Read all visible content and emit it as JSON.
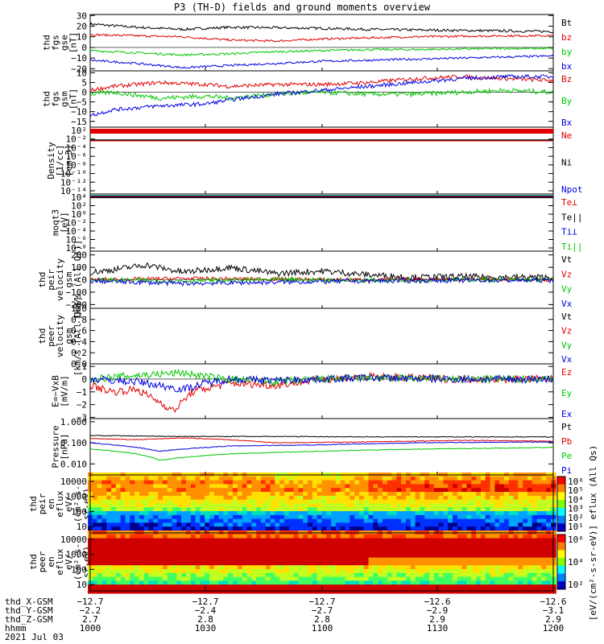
{
  "title": "P3 (TH-D) fields and ground moments overview",
  "chart_data": [
    {
      "type": "line",
      "id": "fgs",
      "ylabel": [
        "thd",
        "fgs",
        "gse",
        "[nT]"
      ],
      "ylim": [
        -22,
        31
      ],
      "ticks": [
        {
          "v": 30,
          "t": "30"
        },
        {
          "v": 20,
          "t": "20"
        },
        {
          "v": 10,
          "t": "10"
        },
        {
          "v": 0,
          "t": "0"
        },
        {
          "v": -10,
          "t": "−10"
        },
        {
          "v": -20,
          "t": "−20"
        }
      ],
      "series": [
        {
          "name": "Bt",
          "color": "#000000",
          "kx": [
            0,
            0.1,
            0.2,
            0.3,
            0.4,
            0.5,
            0.6,
            0.7,
            0.8,
            0.9,
            1
          ],
          "ky": [
            22,
            19,
            17,
            19,
            18.5,
            18,
            17,
            16.5,
            16,
            15.5,
            15
          ],
          "noise": 1.2
        },
        {
          "name": "bz",
          "color": "#e00000",
          "kx": [
            0,
            0.1,
            0.2,
            0.3,
            0.4,
            0.5,
            0.6,
            0.7,
            0.8,
            0.9,
            1
          ],
          "ky": [
            12,
            11,
            10,
            7,
            6,
            8,
            9,
            10,
            10.5,
            11,
            11
          ],
          "noise": 1
        },
        {
          "name": "by",
          "color": "#00c800",
          "kx": [
            0,
            0.1,
            0.2,
            0.3,
            0.4,
            0.5,
            0.6,
            0.7,
            0.8,
            0.9,
            1
          ],
          "ky": [
            -3,
            -5,
            -7,
            -6,
            -4,
            -3,
            -2,
            -2,
            -1.5,
            -1,
            -1
          ],
          "noise": 1
        },
        {
          "name": "bx",
          "color": "#0000e0",
          "kx": [
            0,
            0.1,
            0.2,
            0.3,
            0.4,
            0.5,
            0.6,
            0.7,
            0.8,
            0.9,
            1
          ],
          "ky": [
            -12,
            -15,
            -19,
            -17,
            -15,
            -13,
            -12,
            -11,
            -10,
            -9,
            -8
          ],
          "noise": 1
        }
      ]
    },
    {
      "type": "line",
      "id": "fgsgsm",
      "ylabel": [
        "thd",
        "fgs",
        "gsm",
        "[nT]"
      ],
      "ylim": [
        -18,
        11
      ],
      "ticks": [
        {
          "v": 10,
          "t": "10"
        },
        {
          "v": 5,
          "t": "5"
        },
        {
          "v": 0,
          "t": "0"
        },
        {
          "v": -5,
          "t": "−5"
        },
        {
          "v": -10,
          "t": "−10"
        },
        {
          "v": -15,
          "t": "−15"
        }
      ],
      "series": [
        {
          "name": "Bz",
          "color": "#e00000",
          "kx": [
            0,
            0.05,
            0.15,
            0.25,
            0.3,
            0.4,
            0.5,
            0.6,
            0.7,
            0.8,
            0.9,
            1
          ],
          "ky": [
            1,
            3,
            5,
            4,
            3,
            4,
            4,
            5,
            7,
            8,
            7,
            6
          ],
          "noise": 1
        },
        {
          "name": "By",
          "color": "#00c800",
          "kx": [
            0,
            0.05,
            0.15,
            0.25,
            0.3,
            0.4,
            0.5,
            0.6,
            0.7,
            0.8,
            0.9,
            1
          ],
          "ky": [
            -1,
            0,
            -3,
            -2,
            -3,
            -1,
            0,
            -1,
            -1,
            0,
            1,
            0
          ],
          "noise": 1.2
        },
        {
          "name": "Bx",
          "color": "#0000e0",
          "kx": [
            0,
            0.05,
            0.15,
            0.25,
            0.3,
            0.4,
            0.5,
            0.6,
            0.7,
            0.8,
            0.9,
            1
          ],
          "ky": [
            -12,
            -9,
            -7,
            -6,
            -4,
            -1,
            1,
            3,
            5,
            7,
            8,
            8
          ],
          "noise": 1
        }
      ]
    },
    {
      "type": "line",
      "id": "density",
      "ylabel": [
        "Density",
        "[1/cc]",
        "[cm−3]"
      ],
      "ticks": [
        {
          "t": "10²"
        },
        {
          "t": "10⁻²"
        },
        {
          "t": "10⁻⁴"
        },
        {
          "t": "10⁻⁶"
        },
        {
          "t": "10⁻⁸"
        },
        {
          "t": "10⁻¹⁰"
        },
        {
          "t": "10⁻¹²"
        },
        {
          "t": "10⁻¹⁴"
        }
      ],
      "series": [
        {
          "name": "Ne",
          "color": "#e00000"
        },
        {
          "name": "Ni",
          "color": "#000000"
        },
        {
          "name": "Npot",
          "color": "#0000e0"
        }
      ]
    },
    {
      "type": "line",
      "id": "temp",
      "ylabel": [
        "moqt3",
        "[eV]"
      ],
      "ticks": [
        {
          "t": "10⁴"
        },
        {
          "t": "10²"
        },
        {
          "t": "10⁰"
        },
        {
          "t": "10⁻²"
        },
        {
          "t": "10⁻⁴"
        },
        {
          "t": "10⁻⁶"
        },
        {
          "t": "10⁻⁸"
        }
      ],
      "series": [
        {
          "name": "Te⊥",
          "color": "#e00000"
        },
        {
          "name": "Te||",
          "color": "#000000"
        },
        {
          "name": "Ti⊥",
          "color": "#0000e0"
        },
        {
          "name": "Ti||",
          "color": "#00c800"
        }
      ]
    },
    {
      "type": "line",
      "id": "peir",
      "ylabel": [
        "thd",
        "peir",
        "velocity",
        "gsm",
        "[km/s (All Qs)]"
      ],
      "ylim": [
        -230,
        230
      ],
      "ticks": [
        {
          "v": 200,
          "t": "200"
        },
        {
          "v": 100,
          "t": "100"
        },
        {
          "v": 0,
          "t": "0"
        },
        {
          "v": -100,
          "t": "−100"
        },
        {
          "v": -200,
          "t": "−200"
        }
      ],
      "series": [
        {
          "name": "Vt",
          "color": "#000000",
          "kx": [
            0,
            0.05,
            0.12,
            0.2,
            0.3,
            0.4,
            0.5,
            0.6,
            0.7,
            0.8,
            0.9,
            1
          ],
          "ky": [
            60,
            80,
            120,
            60,
            100,
            50,
            70,
            40,
            20,
            25,
            20,
            20
          ],
          "noise": 25
        },
        {
          "name": "Vz",
          "color": "#e00000",
          "kx": [
            0,
            0.2,
            0.4,
            0.6,
            0.8,
            1
          ],
          "ky": [
            0,
            10,
            5,
            0,
            5,
            0
          ],
          "noise": 15
        },
        {
          "name": "Vy",
          "color": "#00c800",
          "kx": [
            0,
            0.2,
            0.4,
            0.6,
            0.8,
            1
          ],
          "ky": [
            0,
            -10,
            0,
            -5,
            0,
            0
          ],
          "noise": 18
        },
        {
          "name": "Vx",
          "color": "#0000e0",
          "kx": [
            0,
            0.2,
            0.4,
            0.6,
            0.8,
            1
          ],
          "ky": [
            -10,
            -30,
            -20,
            -10,
            -5,
            -5
          ],
          "noise": 18
        }
      ]
    },
    {
      "type": "line",
      "id": "peer",
      "ylabel": [
        "thd",
        "peer",
        "velocity",
        "gsm",
        "[km/s (All Qs)]"
      ],
      "ylim": [
        0,
        1
      ],
      "ticks": [
        {
          "v": 1,
          "t": "1.0"
        },
        {
          "v": 0.8,
          "t": "0.8"
        },
        {
          "v": 0.6,
          "t": "0.6"
        },
        {
          "v": 0.4,
          "t": "0.4"
        },
        {
          "v": 0.2,
          "t": "0.2"
        },
        {
          "v": 0,
          "t": "0.0"
        }
      ],
      "series": [
        {
          "name": "Vt",
          "color": "#000000"
        },
        {
          "name": "Vz",
          "color": "#e00000"
        },
        {
          "name": "Vy",
          "color": "#00c800"
        },
        {
          "name": "Vx",
          "color": "#0000e0"
        }
      ]
    },
    {
      "type": "line",
      "id": "efield",
      "ylabel": [
        "E=−VxB",
        "[mV/m]"
      ],
      "ylim": [
        -3.1,
        1.2
      ],
      "ticks": [
        {
          "v": 1,
          "t": "1"
        },
        {
          "v": 0,
          "t": "0"
        },
        {
          "v": -1,
          "t": "−1"
        },
        {
          "v": -2,
          "t": "−2"
        },
        {
          "v": -3,
          "t": "−3"
        }
      ],
      "series": [
        {
          "name": "Ez",
          "color": "#e00000",
          "kx": [
            0,
            0.05,
            0.1,
            0.15,
            0.18,
            0.22,
            0.3,
            0.4,
            0.5,
            0.6,
            0.8,
            1
          ],
          "ky": [
            -0.5,
            -1,
            -0.8,
            -1.8,
            -2.5,
            -1,
            -0.3,
            -0.5,
            0,
            0.2,
            0,
            0
          ],
          "noise": 0.3
        },
        {
          "name": "Ey",
          "color": "#00c800",
          "kx": [
            0,
            0.1,
            0.2,
            0.25,
            0.3,
            0.4,
            0.5,
            0.6,
            0.8,
            1
          ],
          "ky": [
            0,
            0.3,
            0.5,
            0.2,
            0,
            -0.2,
            0,
            0.1,
            0,
            0
          ],
          "noise": 0.3
        },
        {
          "name": "Ex",
          "color": "#0000e0",
          "kx": [
            0,
            0.1,
            0.2,
            0.25,
            0.3,
            0.4,
            0.5,
            0.6,
            0.8,
            1
          ],
          "ky": [
            0,
            -0.2,
            -0.8,
            -0.3,
            0,
            -0.1,
            0,
            0.1,
            0,
            0
          ],
          "noise": 0.3
        }
      ]
    },
    {
      "type": "line",
      "id": "pressure",
      "ylabel": [
        "Pressure",
        "[nPa]"
      ],
      "logscale": true,
      "ylim": [
        0.003,
        1.4
      ],
      "ticks": [
        {
          "v": 1,
          "t": "1.000"
        },
        {
          "v": 0.1,
          "t": "0.100"
        },
        {
          "v": 0.01,
          "t": "0.010"
        }
      ],
      "series": [
        {
          "name": "Pt",
          "color": "#000000",
          "kx": [
            0,
            0.2,
            0.4,
            0.6,
            0.8,
            1
          ],
          "ky": [
            0.22,
            0.2,
            0.2,
            0.19,
            0.19,
            0.19
          ],
          "noise": 0
        },
        {
          "name": "Pb",
          "color": "#e00000",
          "kx": [
            0,
            0.1,
            0.2,
            0.3,
            0.4,
            0.6,
            0.8,
            1
          ],
          "ky": [
            0.16,
            0.14,
            0.17,
            0.14,
            0.1,
            0.11,
            0.13,
            0.12
          ],
          "noise": 0
        },
        {
          "name": "Pe",
          "color": "#00c800",
          "kx": [
            0,
            0.1,
            0.15,
            0.2,
            0.3,
            0.5,
            0.7,
            1
          ],
          "ky": [
            0.05,
            0.03,
            0.015,
            0.02,
            0.03,
            0.04,
            0.05,
            0.06
          ],
          "noise": 0
        },
        {
          "name": "Pi",
          "color": "#0000e0",
          "kx": [
            0,
            0.1,
            0.15,
            0.2,
            0.3,
            0.5,
            0.7,
            1
          ],
          "ky": [
            0.1,
            0.06,
            0.04,
            0.05,
            0.07,
            0.08,
            0.1,
            0.11
          ],
          "noise": 0
        }
      ]
    },
    {
      "type": "heatmap",
      "id": "peir_spec",
      "ylabel": [
        "thd",
        "peir",
        "en",
        "eflux",
        "eV/",
        "(cm²-s-",
        "sr-eV)"
      ],
      "ticks": [
        {
          "t": "10000"
        },
        {
          "t": "1000"
        },
        {
          "t": "100"
        },
        {
          "t": "10"
        }
      ]
    },
    {
      "type": "heatmap",
      "id": "peer_spec",
      "ylabel": [
        "thd",
        "peer",
        "en",
        "eflux",
        "eV/",
        "(cm²-s-",
        "sr-eV)"
      ],
      "ticks": [
        {
          "t": "10000"
        },
        {
          "t": "1000"
        },
        {
          "t": "100"
        },
        {
          "t": "10"
        }
      ]
    }
  ],
  "colorbar": {
    "ticks_top": [
      "10⁶",
      "10⁵",
      "10⁴",
      "10³",
      "10²",
      "10¹"
    ],
    "ticks_bot": [
      "10⁶",
      "10⁴",
      "10²"
    ],
    "label": "[eV/(cm²-s-sr-eV)] eflux (All Qs)"
  },
  "xaxis": {
    "rows": [
      {
        "label": "thd_X-GSM",
        "values": [
          "−12.7",
          "−12.7",
          "−12.7",
          "−12.6",
          "−12.6"
        ]
      },
      {
        "label": "thd_Y-GSM",
        "values": [
          "−2.2",
          "−2.4",
          "−2.7",
          "−2.9",
          "−3.1"
        ]
      },
      {
        "label": "thd_Z-GSM",
        "values": [
          "2.7",
          "2.8",
          "2.8",
          "2.9",
          "2.9"
        ]
      },
      {
        "label": "hhmm",
        "values": [
          "1000",
          "1030",
          "1100",
          "1130",
          "1200"
        ]
      }
    ],
    "date": "2021 Jul 03"
  }
}
